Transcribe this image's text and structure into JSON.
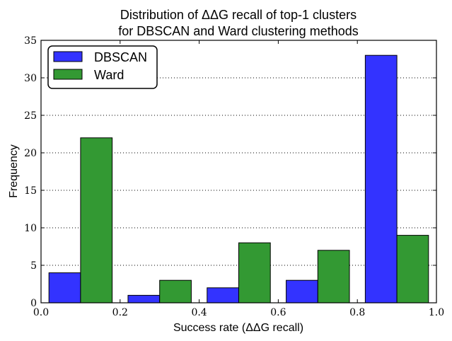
{
  "chart_data": {
    "type": "bar",
    "title_lines": [
      "Distribution of ΔΔG recall of top-1 clusters",
      "for DBSCAN and Ward clustering methods"
    ],
    "xlabel": "Success rate (ΔΔG recall)",
    "ylabel": "Frequency",
    "xlim": [
      0.0,
      1.0
    ],
    "ylim": [
      0,
      35
    ],
    "xticks": [
      "0.0",
      "0.2",
      "0.4",
      "0.6",
      "0.8",
      "1.0"
    ],
    "yticks": [
      "0",
      "5",
      "10",
      "15",
      "20",
      "25",
      "30",
      "35"
    ],
    "grid": "y-dotted",
    "legend_position": "upper-left",
    "bins": [
      [
        0.02,
        0.18
      ],
      [
        0.22,
        0.38
      ],
      [
        0.42,
        0.58
      ],
      [
        0.62,
        0.78
      ],
      [
        0.82,
        0.98
      ]
    ],
    "series": [
      {
        "name": "DBSCAN",
        "color": "#3333ff",
        "values": [
          4,
          1,
          2,
          3,
          33
        ]
      },
      {
        "name": "Ward",
        "color": "#339933",
        "values": [
          22,
          3,
          8,
          7,
          9
        ]
      }
    ]
  }
}
